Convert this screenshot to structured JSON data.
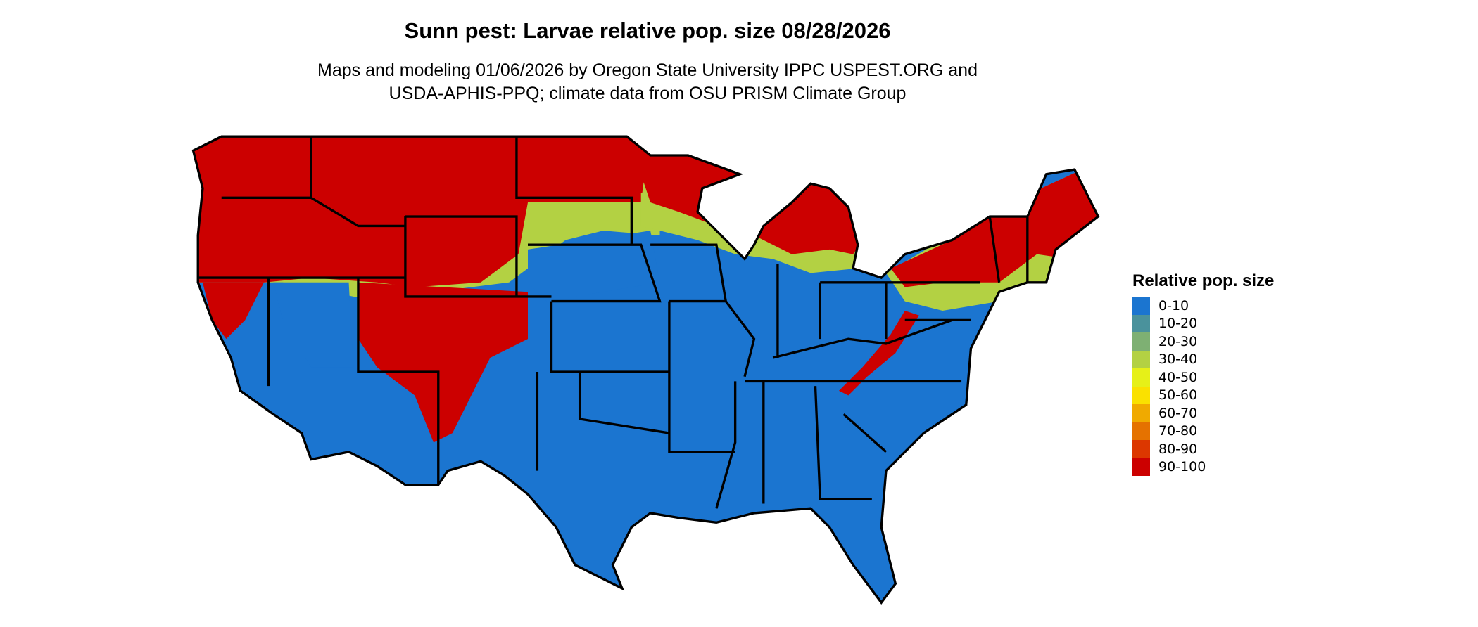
{
  "title": "Sunn pest: Larvae relative pop. size 08/28/2026",
  "subtitle_line1": "Maps and modeling 01/06/2026 by Oregon State University IPPC USPEST.ORG and",
  "subtitle_line2": "USDA-APHIS-PPQ; climate data from OSU PRISM Climate Group",
  "legend": {
    "title": "Relative pop. size",
    "items": [
      {
        "label": "0-10",
        "color": "#1b75d0"
      },
      {
        "label": "10-20",
        "color": "#4a929c"
      },
      {
        "label": "20-30",
        "color": "#7eb073"
      },
      {
        "label": "30-40",
        "color": "#b3d143"
      },
      {
        "label": "40-50",
        "color": "#e6f018"
      },
      {
        "label": "50-60",
        "color": "#fae100"
      },
      {
        "label": "60-70",
        "color": "#f0aa00"
      },
      {
        "label": "70-80",
        "color": "#e57200"
      },
      {
        "label": "80-90",
        "color": "#dc3700"
      },
      {
        "label": "90-100",
        "color": "#cc0000"
      }
    ]
  }
}
